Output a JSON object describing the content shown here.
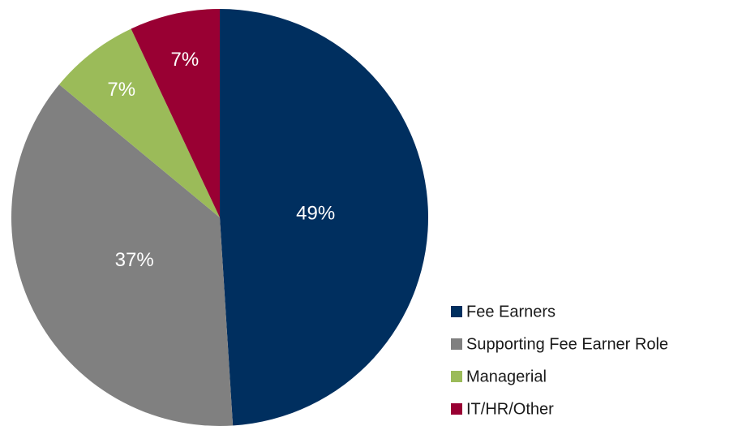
{
  "chart_data": {
    "type": "pie",
    "categories": [
      "Fee Earners",
      "Supporting Fee Earner Role",
      "Managerial",
      "IT/HR/Other"
    ],
    "values": [
      49,
      37,
      7,
      7
    ],
    "value_labels": [
      "49%",
      "37%",
      "7%",
      "7%"
    ],
    "colors": [
      "#002f5f",
      "#808080",
      "#9bbb59",
      "#990033"
    ],
    "legend": "bottom-right"
  }
}
